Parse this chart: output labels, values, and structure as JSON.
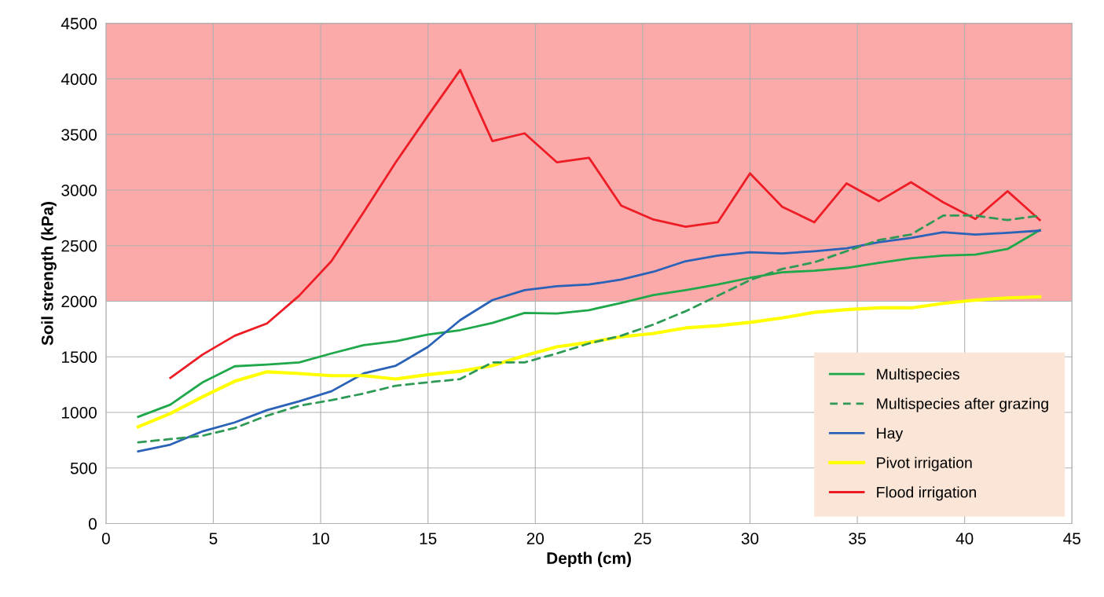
{
  "chart_data": {
    "type": "line",
    "xlabel": "Depth (cm)",
    "ylabel": "Soil strength (kPa)",
    "x": [
      1.5,
      3,
      4.5,
      6,
      7.5,
      9,
      10.5,
      12,
      13.5,
      15,
      16.5,
      18,
      19.5,
      21,
      22.5,
      24,
      25.5,
      27,
      28.5,
      30,
      31.5,
      33,
      34.5,
      36,
      37.5,
      39,
      40.5,
      42,
      43.5
    ],
    "series": [
      {
        "name": "Multispecies",
        "color": "#1fa84a",
        "line_style": "solid",
        "values": [
          960,
          1070,
          1270,
          1415,
          1430,
          1450,
          1530,
          1605,
          1640,
          1700,
          1740,
          1805,
          1895,
          1890,
          1920,
          1985,
          2055,
          2100,
          2150,
          2210,
          2260,
          2275,
          2300,
          2345,
          2385,
          2410,
          2420,
          2470,
          2640
        ]
      },
      {
        "name": "Multispecies after grazing",
        "color": "#2e9a55",
        "line_style": "dashed",
        "values": [
          730,
          760,
          790,
          860,
          970,
          1060,
          1110,
          1170,
          1240,
          1270,
          1300,
          1450,
          1450,
          1530,
          1620,
          1690,
          1790,
          1910,
          2050,
          2190,
          2290,
          2350,
          2450,
          2550,
          2600,
          2770,
          2770,
          2730,
          2770
        ]
      },
      {
        "name": "Hay",
        "color": "#2a62b8",
        "line_style": "solid",
        "values": [
          650,
          710,
          830,
          910,
          1020,
          1100,
          1190,
          1350,
          1420,
          1590,
          1830,
          2010,
          2100,
          2135,
          2150,
          2195,
          2265,
          2360,
          2410,
          2440,
          2430,
          2450,
          2475,
          2530,
          2570,
          2620,
          2600,
          2615,
          2635
        ]
      },
      {
        "name": "Pivot irrigation",
        "color": "#ffff00",
        "line_style": "solid",
        "values": [
          870,
          990,
          1140,
          1280,
          1365,
          1350,
          1330,
          1330,
          1300,
          1340,
          1370,
          1420,
          1510,
          1590,
          1630,
          1680,
          1710,
          1760,
          1780,
          1810,
          1850,
          1900,
          1925,
          1940,
          1940,
          1980,
          2010,
          2030,
          2040
        ]
      },
      {
        "name": "Flood irrigation",
        "color": "#ee1c25",
        "line_style": "solid",
        "values": [
          null,
          1310,
          1520,
          1690,
          1800,
          2050,
          2360,
          2800,
          3250,
          3670,
          4080,
          3440,
          3510,
          3250,
          3290,
          2860,
          2735,
          2670,
          2710,
          3150,
          2850,
          2710,
          3060,
          2900,
          3070,
          2890,
          2740,
          2990,
          2730
        ]
      }
    ],
    "xlim": [
      0,
      45
    ],
    "xticks": [
      0,
      5,
      10,
      15,
      20,
      25,
      30,
      35,
      40,
      45
    ],
    "ylim": [
      0,
      4500
    ],
    "yticks": [
      0,
      500,
      1000,
      1500,
      2000,
      2500,
      3000,
      3500,
      4000,
      4500
    ],
    "bands": [
      {
        "axis": "y",
        "from": 2000,
        "to": 4500,
        "color": "#fca9a9"
      }
    ],
    "grid": true,
    "legend": "bottom right",
    "marker": "none"
  }
}
